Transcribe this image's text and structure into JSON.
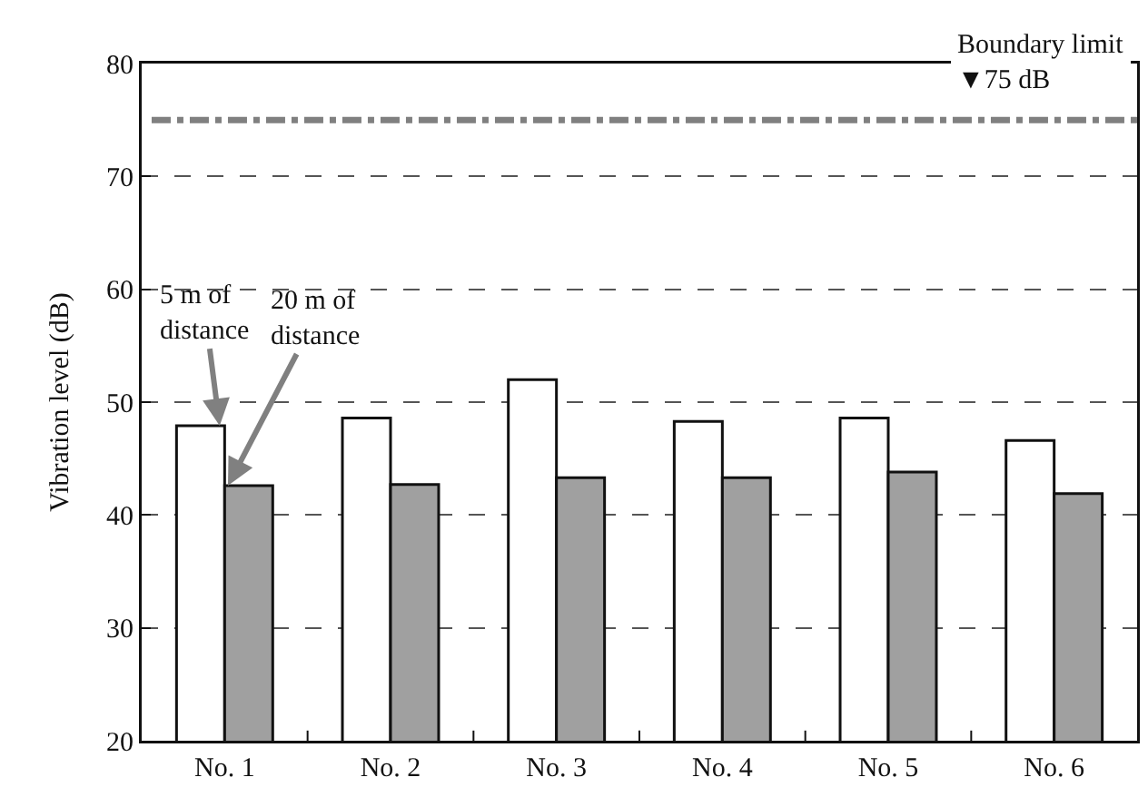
{
  "chart_data": {
    "type": "bar",
    "ylabel": "Vibration level (dB)",
    "categories": [
      "No. 1",
      "No. 2",
      "No. 3",
      "No. 4",
      "No. 5",
      "No. 6"
    ],
    "series": [
      {
        "color": "#ffffff",
        "values": [
          47.9,
          48.6,
          52.0,
          48.3,
          48.6,
          46.6
        ]
      },
      {
        "color": "#a0a0a0",
        "values": [
          42.6,
          42.7,
          43.3,
          43.3,
          43.8,
          41.9
        ]
      }
    ],
    "ylim": [
      20,
      80
    ],
    "yticks": [
      20,
      30,
      40,
      50,
      60,
      70,
      80
    ],
    "grid": "y",
    "ref_lines": [
      {
        "axis": "y",
        "value": 75,
        "label": "Boundary limit\n▼75 dB",
        "color": "#808080",
        "line_style": "dashdot"
      }
    ],
    "annotations": [
      {
        "text": "5 m of\ndistance",
        "x": "No. 1",
        "y": 47.9
      },
      {
        "text": "20 m of\ndistance",
        "x": "No. 1",
        "y": 42.6
      }
    ]
  }
}
